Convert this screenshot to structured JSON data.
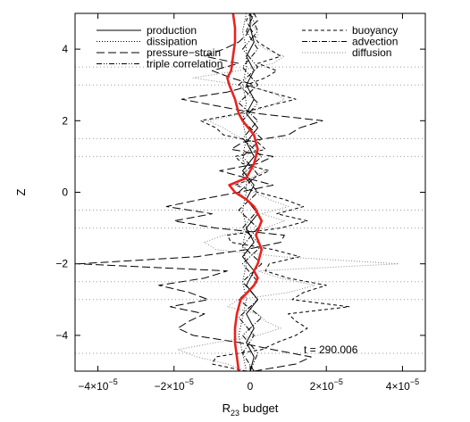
{
  "chart_data": {
    "type": "line",
    "title": "",
    "xlabel": "R",
    "xlabel_sub": "23",
    "xlabel_rest": " budget",
    "ylabel": "Z",
    "xlim": [
      -4.6e-05,
      4.6e-05
    ],
    "ylim": [
      -5,
      5
    ],
    "x_ticks": [
      {
        "value": -4e-05,
        "mant": "−4×10",
        "exp": "−5"
      },
      {
        "value": -2e-05,
        "mant": "−2×10",
        "exp": "−5"
      },
      {
        "value": 0,
        "mant": "0",
        "exp": ""
      },
      {
        "value": 2e-05,
        "mant": "2×10",
        "exp": "−5"
      },
      {
        "value": 4e-05,
        "mant": "4×10",
        "exp": "−5"
      }
    ],
    "y_ticks": [
      -4,
      -2,
      0,
      2,
      4
    ],
    "annotation": "t = 290.006",
    "reference_lines_y": [
      -4.5,
      -3,
      -2.5,
      -1,
      -0.5,
      1,
      1.5,
      3,
      3.5
    ],
    "legend": [
      {
        "label": "production",
        "style": "solid"
      },
      {
        "label": "dissipation",
        "style": "dotted"
      },
      {
        "label": "pressure−strain",
        "style": "longdash"
      },
      {
        "label": "triple correlation",
        "style": "dashdotdot"
      },
      {
        "label": "buoyancy",
        "style": "dash"
      },
      {
        "label": "advection",
        "style": "dashdot"
      },
      {
        "label": "diffusion",
        "style": "dotted-gray"
      }
    ],
    "series": [
      {
        "key": "pressure_strain",
        "style": "longdash",
        "points": [
          [
            -5,
            1e-06
          ],
          [
            -4.8,
            1.2e-05
          ],
          [
            -4.6,
            1.6e-05
          ],
          [
            -4.4,
            6e-06
          ],
          [
            -4.2,
            -3e-06
          ],
          [
            -4.0,
            -1.5e-05
          ],
          [
            -3.8,
            -1.9e-05
          ],
          [
            -3.6,
            -1.6e-05
          ],
          [
            -3.4,
            -1.2e-05
          ],
          [
            -3.2,
            -2.1e-05
          ],
          [
            -3.0,
            -1.1e-05
          ],
          [
            -2.8,
            -1.6e-05
          ],
          [
            -2.6,
            -2.4e-05
          ],
          [
            -2.4,
            -1.2e-05
          ],
          [
            -2.2,
            -6e-06
          ],
          [
            -2.0,
            -4.5e-05
          ],
          [
            -1.8,
            -1.4e-05
          ],
          [
            -1.6,
            -1e-06
          ],
          [
            -1.4,
            8e-06
          ],
          [
            -1.2,
            9e-06
          ],
          [
            -1.0,
            -9e-06
          ],
          [
            -0.8,
            -2e-05
          ],
          [
            -0.6,
            -1e-05
          ],
          [
            -0.4,
            -2.2e-05
          ],
          [
            -0.2,
            -1.3e-05
          ],
          [
            0,
            -3e-06
          ],
          [
            0.2,
            6e-06
          ],
          [
            0.4,
            -1e-06
          ],
          [
            0.6,
            -8e-06
          ],
          [
            0.8,
            2e-06
          ],
          [
            1.0,
            6e-06
          ],
          [
            1.2,
            -5e-06
          ],
          [
            1.4,
            -2e-06
          ],
          [
            1.6,
            1e-05
          ],
          [
            1.8,
            1.3e-05
          ],
          [
            2.0,
            1.9e-05
          ],
          [
            2.2,
            2e-06
          ],
          [
            2.4,
            -8e-06
          ],
          [
            2.6,
            -1.8e-05
          ],
          [
            2.8,
            -6e-06
          ],
          [
            3.0,
            1e-06
          ],
          [
            3.2,
            -5e-06
          ],
          [
            3.4,
            -1e-05
          ],
          [
            3.6,
            -3e-06
          ],
          [
            3.8,
            -1.2e-05
          ],
          [
            4.0,
            -7e-06
          ],
          [
            4.2,
            -3e-06
          ],
          [
            4.4,
            -1e-06
          ],
          [
            4.6,
            0
          ],
          [
            4.8,
            2e-06
          ],
          [
            5.0,
            1e-06
          ]
        ]
      },
      {
        "key": "buoyancy",
        "style": "dash",
        "points": [
          [
            -5,
            -1e-06
          ],
          [
            -4.8,
            -1e-05
          ],
          [
            -4.6,
            -9e-06
          ],
          [
            -4.4,
            3e-06
          ],
          [
            -4.2,
            7e-06
          ],
          [
            -4.0,
            1.2e-05
          ],
          [
            -3.8,
            1.5e-05
          ],
          [
            -3.6,
            1.2e-05
          ],
          [
            -3.4,
            1e-05
          ],
          [
            -3.2,
            2.6e-05
          ],
          [
            -3.0,
            1.1e-05
          ],
          [
            -2.8,
            1.4e-05
          ],
          [
            -2.6,
            2e-05
          ],
          [
            -2.4,
            1e-05
          ],
          [
            -2.2,
            4e-06
          ],
          [
            -2.0,
            5e-06
          ],
          [
            -1.8,
            1.3e-05
          ],
          [
            -1.6,
            6e-06
          ],
          [
            -1.4,
            -5e-06
          ],
          [
            -1.2,
            -6e-06
          ],
          [
            -1.0,
            8e-06
          ],
          [
            -0.8,
            1.5e-05
          ],
          [
            -0.6,
            7e-06
          ],
          [
            -0.4,
            1.4e-05
          ],
          [
            -0.2,
            9e-06
          ],
          [
            0,
            2e-06
          ],
          [
            0.2,
            -4e-06
          ],
          [
            0.4,
            1e-06
          ],
          [
            0.6,
            5e-06
          ],
          [
            0.8,
            -2e-06
          ],
          [
            1.0,
            -4e-06
          ],
          [
            1.2,
            4e-06
          ],
          [
            1.4,
            2e-06
          ],
          [
            1.6,
            -7e-06
          ],
          [
            1.8,
            -9e-06
          ],
          [
            2.0,
            -1.3e-05
          ],
          [
            2.2,
            -3e-06
          ],
          [
            2.4,
            4e-06
          ],
          [
            2.6,
            1.2e-05
          ],
          [
            2.8,
            5e-06
          ],
          [
            3.0,
            -1e-06
          ],
          [
            3.2,
            4e-06
          ],
          [
            3.4,
            7e-06
          ],
          [
            3.6,
            2e-06
          ],
          [
            3.8,
            8e-06
          ],
          [
            4.0,
            5e-06
          ],
          [
            4.2,
            2e-06
          ],
          [
            4.4,
            1e-06
          ],
          [
            4.6,
            0
          ],
          [
            4.8,
            -1e-06
          ],
          [
            5.0,
            0
          ]
        ]
      },
      {
        "key": "diffusion",
        "style": "dotted-gray",
        "points": [
          [
            -5,
            -1e-06
          ],
          [
            -4.8,
            -6e-06
          ],
          [
            -4.6,
            -1.4e-05
          ],
          [
            -4.4,
            -1.9e-05
          ],
          [
            -4.2,
            -9e-06
          ],
          [
            -4.0,
            2e-06
          ],
          [
            -3.8,
            8e-06
          ],
          [
            -3.6,
            4e-06
          ],
          [
            -3.4,
            2e-06
          ],
          [
            -3.2,
            -6e-06
          ],
          [
            -3.0,
            -3e-06
          ],
          [
            -2.8,
            1e-05
          ],
          [
            -2.6,
            1.7e-05
          ],
          [
            -2.4,
            8e-06
          ],
          [
            -2.2,
            2e-06
          ],
          [
            -2.0,
            3.9e-05
          ],
          [
            -1.8,
            8e-06
          ],
          [
            -1.6,
            -9e-06
          ],
          [
            -1.4,
            -1.2e-05
          ],
          [
            -1.2,
            -7e-06
          ],
          [
            -1.0,
            4e-06
          ],
          [
            -0.8,
            9e-06
          ],
          [
            -0.6,
            3e-06
          ],
          [
            -0.4,
            1e-05
          ],
          [
            -0.2,
            5e-06
          ],
          [
            0,
            1e-06
          ],
          [
            0.2,
            -3e-06
          ],
          [
            0.4,
            0
          ],
          [
            0.6,
            4e-06
          ],
          [
            0.8,
            -1e-06
          ],
          [
            1.0,
            -3e-06
          ],
          [
            1.2,
            2e-06
          ],
          [
            1.4,
            0
          ],
          [
            1.6,
            -4e-06
          ],
          [
            1.8,
            -7e-06
          ],
          [
            2.0,
            -1.1e-05
          ],
          [
            2.2,
            -2e-06
          ],
          [
            2.4,
            5e-06
          ],
          [
            2.6,
            9e-06
          ],
          [
            2.8,
            6e-06
          ],
          [
            3.0,
            -3e-06
          ],
          [
            3.2,
            -1.5e-05
          ],
          [
            3.4,
            -3e-06
          ],
          [
            3.6,
            6e-06
          ],
          [
            3.8,
            9e-06
          ],
          [
            4.0,
            4e-06
          ],
          [
            4.2,
            1e-06
          ],
          [
            4.4,
            2e-06
          ],
          [
            4.6,
            1e-06
          ],
          [
            4.8,
            0
          ],
          [
            5.0,
            0
          ]
        ]
      },
      {
        "key": "dissipation",
        "style": "dotted",
        "points": [
          [
            -5,
            -1e-06
          ],
          [
            -4.5,
            -2e-06
          ],
          [
            -4.0,
            -3e-06
          ],
          [
            -3.5,
            -2e-06
          ],
          [
            -3.0,
            -1e-06
          ],
          [
            -2.5,
            -2e-06
          ],
          [
            -2.0,
            -1e-06
          ],
          [
            -1.5,
            -2e-06
          ],
          [
            -1.0,
            -1e-06
          ],
          [
            -0.5,
            -2e-06
          ],
          [
            0,
            -1e-06
          ],
          [
            0.5,
            -1e-06
          ],
          [
            1.0,
            -2e-06
          ],
          [
            1.5,
            -1e-06
          ],
          [
            2.0,
            -2e-06
          ],
          [
            2.5,
            -1e-06
          ],
          [
            3.0,
            -2e-06
          ],
          [
            3.5,
            -1e-06
          ],
          [
            4.0,
            -1e-06
          ],
          [
            4.5,
            -2e-06
          ],
          [
            5.0,
            -1e-06
          ]
        ]
      },
      {
        "key": "triple_correlation",
        "style": "dashdotdot",
        "points": [
          [
            -5,
            0
          ],
          [
            -4.5,
            2e-06
          ],
          [
            -4.0,
            -2e-06
          ],
          [
            -3.5,
            3e-06
          ],
          [
            -3.0,
            -3e-06
          ],
          [
            -2.5,
            2e-06
          ],
          [
            -2.0,
            -2e-06
          ],
          [
            -1.5,
            3e-06
          ],
          [
            -1.0,
            -2e-06
          ],
          [
            -0.5,
            2e-06
          ],
          [
            0,
            -3e-06
          ],
          [
            0.5,
            2e-06
          ],
          [
            1.0,
            -2e-06
          ],
          [
            1.5,
            3e-06
          ],
          [
            2.0,
            -2e-06
          ],
          [
            2.5,
            2e-06
          ],
          [
            3.0,
            -3e-06
          ],
          [
            3.5,
            2e-06
          ],
          [
            4.0,
            -2e-06
          ],
          [
            4.5,
            2e-06
          ],
          [
            5.0,
            0
          ]
        ]
      },
      {
        "key": "advection",
        "style": "dashdot",
        "points": [
          [
            -5,
            1e-06
          ],
          [
            -4.5,
            -2e-06
          ],
          [
            -4.0,
            1e-06
          ],
          [
            -3.5,
            -3e-06
          ],
          [
            -3.0,
            2e-06
          ],
          [
            -2.5,
            -2e-06
          ],
          [
            -2.0,
            3e-06
          ],
          [
            -1.5,
            -2e-06
          ],
          [
            -1.0,
            2e-06
          ],
          [
            -0.5,
            -3e-06
          ],
          [
            0,
            2e-06
          ],
          [
            0.5,
            -2e-06
          ],
          [
            1.0,
            3e-06
          ],
          [
            1.5,
            -2e-06
          ],
          [
            2.0,
            2e-06
          ],
          [
            2.5,
            -3e-06
          ],
          [
            3.0,
            2e-06
          ],
          [
            3.5,
            -2e-06
          ],
          [
            4.0,
            2e-06
          ],
          [
            4.5,
            -1e-06
          ],
          [
            5.0,
            1e-06
          ]
        ]
      },
      {
        "key": "production",
        "style": "solid",
        "points": [
          [
            -5,
            0
          ],
          [
            -4.6,
            1e-06
          ],
          [
            -4.2,
            -1e-06
          ],
          [
            -3.8,
            1e-06
          ],
          [
            -3.4,
            -1e-06
          ],
          [
            -3.0,
            2e-06
          ],
          [
            -2.6,
            -1e-06
          ],
          [
            -2.2,
            1e-06
          ],
          [
            -1.8,
            -2e-06
          ],
          [
            -1.4,
            1e-06
          ],
          [
            -1.0,
            -1e-06
          ],
          [
            -0.6,
            2e-06
          ],
          [
            -0.2,
            -1e-06
          ],
          [
            0.2,
            1e-06
          ],
          [
            0.6,
            -2e-06
          ],
          [
            1.0,
            1e-06
          ],
          [
            1.4,
            -1e-06
          ],
          [
            1.8,
            2e-06
          ],
          [
            2.2,
            -1e-06
          ],
          [
            2.6,
            1e-06
          ],
          [
            3.0,
            -1e-06
          ],
          [
            3.4,
            1e-06
          ],
          [
            3.8,
            -1e-06
          ],
          [
            4.2,
            1e-06
          ],
          [
            4.6,
            0
          ],
          [
            5.0,
            0
          ]
        ]
      },
      {
        "key": "red_curve",
        "style": "red",
        "points": [
          [
            -5,
            -3e-06
          ],
          [
            -4.6,
            -3.5e-06
          ],
          [
            -4.2,
            -4e-06
          ],
          [
            -3.8,
            -4e-06
          ],
          [
            -3.4,
            -3.5e-06
          ],
          [
            -3.0,
            -2.5e-06
          ],
          [
            -2.6,
            1e-06
          ],
          [
            -2.4,
            2e-06
          ],
          [
            -2.2,
            1e-06
          ],
          [
            -2.0,
            2e-06
          ],
          [
            -1.6,
            3e-06
          ],
          [
            -1.2,
            1.5e-06
          ],
          [
            -0.8,
            3e-06
          ],
          [
            -0.4,
            1e-06
          ],
          [
            -0.2,
            -1e-06
          ],
          [
            0,
            -4e-06
          ],
          [
            0.2,
            -5.5e-06
          ],
          [
            0.4,
            -1e-06
          ],
          [
            0.8,
            1e-06
          ],
          [
            1.2,
            2e-06
          ],
          [
            1.6,
            1e-06
          ],
          [
            2.0,
            -2e-06
          ],
          [
            2.2,
            -3e-06
          ],
          [
            2.6,
            -4e-06
          ],
          [
            3.0,
            -5.5e-06
          ],
          [
            3.2,
            -6e-06
          ],
          [
            3.4,
            -5e-06
          ],
          [
            3.8,
            -4.5e-06
          ],
          [
            4.2,
            -4e-06
          ],
          [
            4.6,
            -4e-06
          ],
          [
            5.0,
            -4.5e-06
          ]
        ]
      }
    ]
  }
}
